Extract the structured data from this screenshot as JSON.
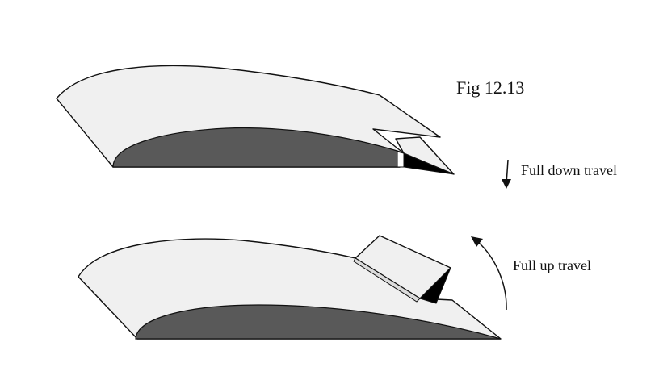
{
  "figure": {
    "caption": "Fig 12.13",
    "down_label": "Full down travel",
    "up_label": "Full up travel"
  },
  "colors": {
    "wing_surface": "#f0f0f0",
    "wing_underside": "#595959",
    "hinge_shadow": "#000000",
    "outline": "#111111"
  }
}
